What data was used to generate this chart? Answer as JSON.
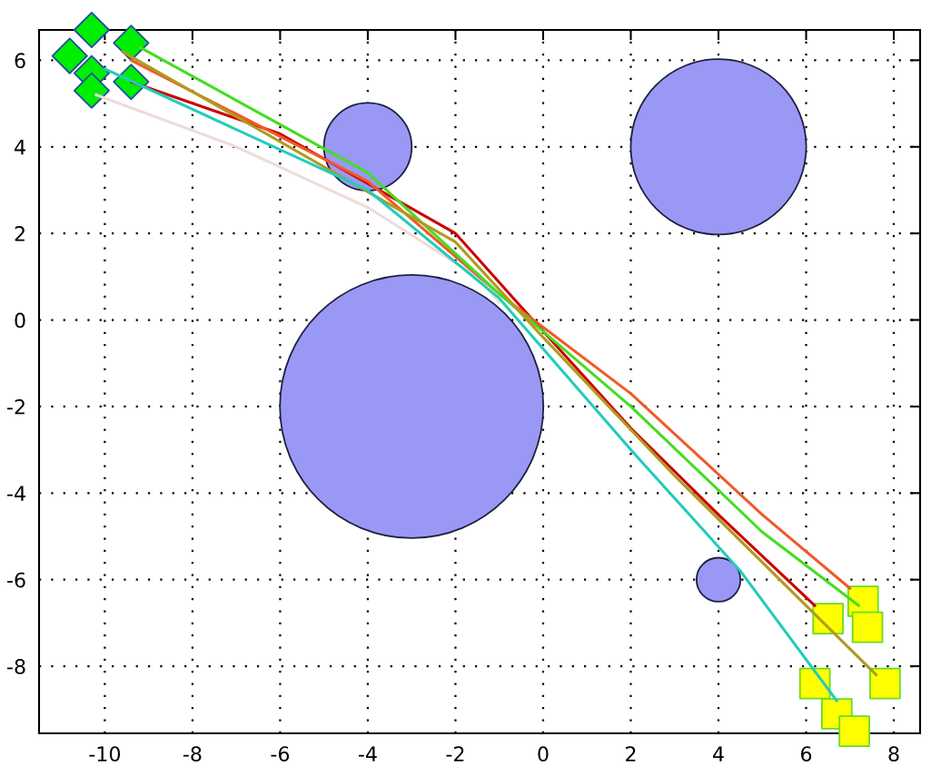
{
  "chart_data": {
    "type": "scatter",
    "xlim": [
      -11.5,
      8.6
    ],
    "ylim": [
      -9.55,
      6.7
    ],
    "xticks": [
      -10,
      -8,
      -6,
      -4,
      -2,
      0,
      2,
      4,
      6,
      8
    ],
    "yticks": [
      -8,
      -6,
      -4,
      -2,
      0,
      2,
      4,
      6
    ],
    "grid": true,
    "legend": false,
    "series": [
      {
        "type": "line",
        "color": "#ecdcd8",
        "marker": "none",
        "line_style": "solid",
        "x": [
          -10.2,
          -7,
          -4,
          -1.5,
          -1
        ],
        "values": [
          5.2,
          4.0,
          2.6,
          1.0,
          0.4
        ]
      },
      {
        "type": "line",
        "color": "#cc0000",
        "marker": "none",
        "line_style": "solid",
        "x": [
          -9.4,
          -6,
          -2,
          -0.5,
          2,
          4,
          6.2
        ],
        "values": [
          5.5,
          4.3,
          2.0,
          0.3,
          -2.5,
          -4.5,
          -6.6
        ]
      },
      {
        "type": "line",
        "color": "#f05a28",
        "marker": "none",
        "line_style": "solid",
        "x": [
          -9.4,
          -4,
          -1,
          2,
          5,
          7
        ],
        "values": [
          6.0,
          3.2,
          0.6,
          -1.7,
          -4.5,
          -6.2
        ]
      },
      {
        "type": "line",
        "color": "#44dd22",
        "marker": "none",
        "line_style": "solid",
        "x": [
          -9.2,
          -4,
          -1,
          2,
          5,
          7.2
        ],
        "values": [
          6.3,
          3.4,
          0.6,
          -2.0,
          -4.9,
          -6.6
        ]
      },
      {
        "type": "line",
        "color": "#b09a20",
        "marker": "none",
        "line_style": "solid",
        "x": [
          -9.6,
          -2,
          0,
          3,
          7.6
        ],
        "values": [
          6.2,
          1.8,
          -0.4,
          -3.6,
          -8.2
        ]
      },
      {
        "type": "line",
        "color": "#22ccbb",
        "marker": "none",
        "line_style": "solid",
        "x": [
          -10,
          -4,
          -1,
          2,
          4.5,
          6.7
        ],
        "values": [
          5.8,
          3.0,
          0.5,
          -3.0,
          -5.8,
          -8.8
        ]
      },
      {
        "type": "bubble",
        "color": "#9999f5",
        "marker": "circle",
        "x": [
          -3,
          4,
          -4,
          4
        ],
        "values": [
          -2,
          4,
          4,
          -6
        ],
        "sizes": [
          1,
          0.444,
          0.111,
          0.0278
        ]
      },
      {
        "color": "#00ee00",
        "marker": "diamond",
        "x": [
          -10.3,
          -9.4,
          -10.8,
          -10.3,
          -9.4,
          -10.3
        ],
        "values": [
          6.7,
          6.4,
          6.1,
          5.7,
          5.5,
          5.3
        ]
      },
      {
        "color": "#ffff00",
        "marker": "square",
        "x": [
          7.3,
          6.5,
          7.4,
          6.2,
          7.8,
          6.7,
          7.1
        ],
        "values": [
          -6.5,
          -6.9,
          -7.1,
          -8.4,
          -8.4,
          -9.1,
          -9.5
        ]
      }
    ]
  }
}
